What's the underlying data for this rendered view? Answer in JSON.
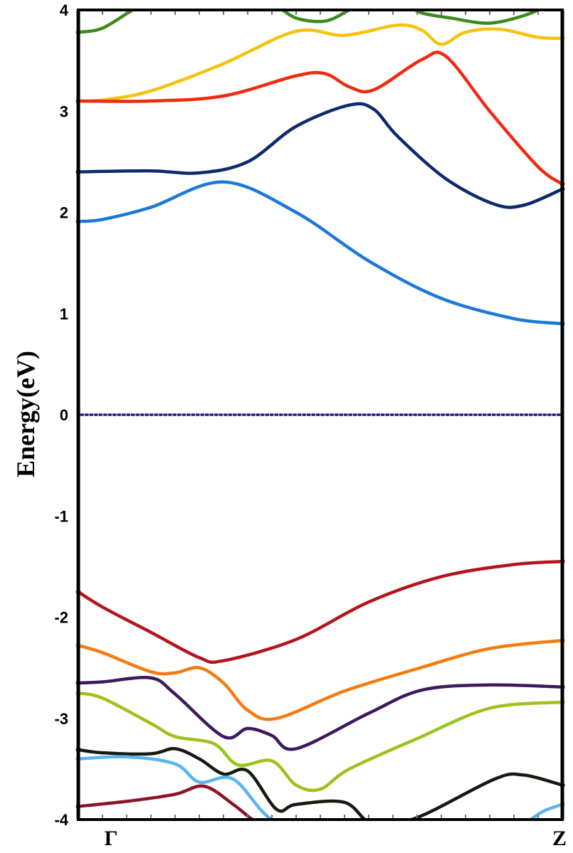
{
  "chart_data": {
    "type": "line",
    "title": "",
    "xlabel": "",
    "ylabel": "Energy(eV)",
    "ylim": [
      -4,
      4
    ],
    "xlim": [
      0,
      1
    ],
    "y_ticks": [
      "4",
      "3",
      "2",
      "1",
      "0",
      "-1",
      "-2",
      "-3",
      "-4"
    ],
    "x_tick_values": [
      0,
      1
    ],
    "x_tick_labels": [
      "Γ",
      "Z"
    ],
    "fermi_level": {
      "y": 0,
      "color": "#1a1a8c",
      "style": "dotted"
    },
    "series": [
      {
        "name": "band-green-top",
        "color": "#3a8a1c",
        "x": [
          0,
          0.05,
          0.12,
          0.17
        ],
        "y": [
          3.78,
          3.82,
          4.02,
          4.1
        ]
      },
      {
        "name": "band-green-top-2",
        "color": "#3a8a1c",
        "x": [
          0.41,
          0.45,
          0.51,
          0.56,
          0.6
        ],
        "y": [
          4.05,
          3.92,
          3.89,
          4.0,
          4.1
        ]
      },
      {
        "name": "band-green-top-3",
        "color": "#3a8a1c",
        "x": [
          0.68,
          0.71,
          0.77,
          0.85,
          0.93,
          0.99
        ],
        "y": [
          4.05,
          3.97,
          3.92,
          3.87,
          3.96,
          4.1
        ]
      },
      {
        "name": "band-yellow",
        "color": "#f5c30f",
        "x": [
          0,
          0.05,
          0.15,
          0.3,
          0.45,
          0.55,
          0.66,
          0.71,
          0.75,
          0.8,
          0.87,
          0.95,
          1.0
        ],
        "y": [
          3.1,
          3.11,
          3.2,
          3.47,
          3.79,
          3.75,
          3.85,
          3.8,
          3.66,
          3.78,
          3.81,
          3.73,
          3.72
        ]
      },
      {
        "name": "band-red-cb",
        "color": "#f02a10",
        "x": [
          0,
          0.15,
          0.3,
          0.45,
          0.51,
          0.56,
          0.61,
          0.71,
          0.76,
          0.85,
          0.95,
          1.0
        ],
        "y": [
          3.1,
          3.1,
          3.15,
          3.35,
          3.37,
          3.24,
          3.21,
          3.51,
          3.54,
          3.0,
          2.45,
          2.28
        ]
      },
      {
        "name": "band-navy-cb",
        "color": "#0d2a6e",
        "x": [
          0,
          0.15,
          0.25,
          0.35,
          0.45,
          0.56,
          0.61,
          0.66,
          0.76,
          0.86,
          0.92,
          1.0
        ],
        "y": [
          2.4,
          2.41,
          2.39,
          2.5,
          2.85,
          3.06,
          3.02,
          2.75,
          2.33,
          2.08,
          2.07,
          2.23
        ]
      },
      {
        "name": "band-blue-cb",
        "color": "#1c78d6",
        "x": [
          0,
          0.05,
          0.15,
          0.3,
          0.45,
          0.6,
          0.75,
          0.9,
          1.0
        ],
        "y": [
          1.91,
          1.93,
          2.05,
          2.3,
          2.0,
          1.52,
          1.15,
          0.95,
          0.9
        ]
      },
      {
        "name": "band-darkred-vb",
        "color": "#b3141e",
        "x": [
          0,
          0.05,
          0.15,
          0.25,
          0.3,
          0.45,
          0.6,
          0.75,
          0.9,
          1.0
        ],
        "y": [
          -1.75,
          -1.9,
          -2.15,
          -2.4,
          -2.43,
          -2.22,
          -1.85,
          -1.6,
          -1.48,
          -1.45
        ]
      },
      {
        "name": "band-orange-vb",
        "color": "#f47b10",
        "x": [
          0,
          0.05,
          0.15,
          0.2,
          0.25,
          0.3,
          0.35,
          0.41,
          0.55,
          0.7,
          0.85,
          1.0
        ],
        "y": [
          -2.28,
          -2.35,
          -2.54,
          -2.55,
          -2.5,
          -2.65,
          -2.92,
          -3.0,
          -2.73,
          -2.51,
          -2.31,
          -2.23
        ]
      },
      {
        "name": "band-purple-vb",
        "color": "#3c1a5c",
        "x": [
          0,
          0.05,
          0.15,
          0.2,
          0.3,
          0.35,
          0.4,
          0.45,
          0.6,
          0.71,
          0.85,
          1.0
        ],
        "y": [
          -2.65,
          -2.64,
          -2.6,
          -2.76,
          -3.18,
          -3.1,
          -3.17,
          -3.3,
          -2.95,
          -2.72,
          -2.67,
          -2.69
        ]
      },
      {
        "name": "band-lime-vb",
        "color": "#9bc31d",
        "x": [
          0,
          0.05,
          0.15,
          0.2,
          0.28,
          0.33,
          0.4,
          0.45,
          0.5,
          0.56,
          0.7,
          0.85,
          1.0
        ],
        "y": [
          -2.75,
          -2.8,
          -3.05,
          -3.18,
          -3.25,
          -3.46,
          -3.42,
          -3.66,
          -3.7,
          -3.5,
          -3.2,
          -2.9,
          -2.84
        ]
      },
      {
        "name": "band-black-vb",
        "color": "#141a0f",
        "x": [
          0,
          0.05,
          0.15,
          0.2,
          0.25,
          0.3,
          0.35,
          0.41,
          0.45,
          0.55,
          0.61,
          0.7,
          0.86,
          0.92,
          1.0
        ],
        "y": [
          -3.31,
          -3.34,
          -3.35,
          -3.3,
          -3.4,
          -3.55,
          -3.52,
          -3.9,
          -3.85,
          -3.83,
          -4.05,
          -3.98,
          -3.6,
          -3.56,
          -3.66
        ]
      },
      {
        "name": "band-lightblue-vb",
        "color": "#5ab4ee",
        "x": [
          0,
          0.1,
          0.2,
          0.25,
          0.32,
          0.4,
          0.5
        ],
        "y": [
          -3.4,
          -3.38,
          -3.45,
          -3.63,
          -3.6,
          -4.0,
          -4.1
        ]
      },
      {
        "name": "band-lightblue-vb-2",
        "color": "#5ab4ee",
        "x": [
          0.92,
          0.96,
          1.0
        ],
        "y": [
          -4.05,
          -3.92,
          -3.85
        ]
      },
      {
        "name": "band-maroon-vb",
        "color": "#8c1428",
        "x": [
          0,
          0.1,
          0.2,
          0.26,
          0.32,
          0.36,
          0.4
        ],
        "y": [
          -3.87,
          -3.82,
          -3.75,
          -3.67,
          -3.85,
          -4.0,
          -4.1
        ]
      }
    ]
  }
}
